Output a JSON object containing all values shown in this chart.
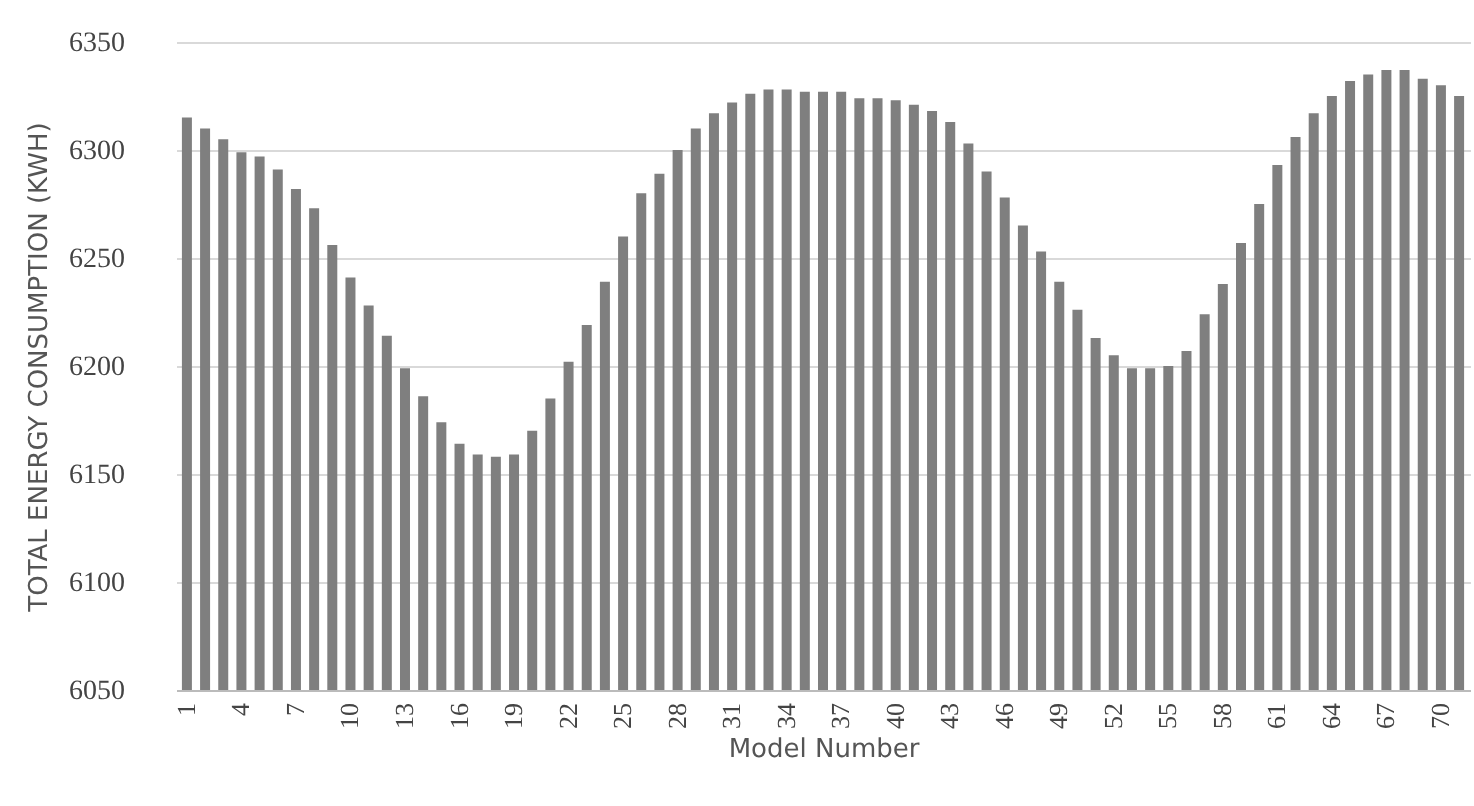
{
  "chart_data": {
    "type": "bar",
    "xlabel": "Model Number",
    "ylabel": "TOTAL ENERGY CONSUMPTION (KWH)",
    "categories": [
      "1",
      null,
      null,
      "4",
      null,
      null,
      "7",
      null,
      null,
      "10",
      null,
      null,
      "13",
      null,
      null,
      "16",
      null,
      null,
      "19",
      null,
      null,
      "22",
      null,
      null,
      "25",
      null,
      null,
      "28",
      null,
      null,
      "31",
      null,
      null,
      "34",
      null,
      null,
      "37",
      null,
      null,
      "40",
      null,
      null,
      "43",
      null,
      null,
      "46",
      null,
      null,
      "49",
      null,
      null,
      "52",
      null,
      null,
      "55",
      null,
      null,
      "58",
      null,
      null,
      "61",
      null,
      null,
      "64",
      null,
      null,
      "67",
      null,
      null,
      "70",
      null
    ],
    "series": [
      {
        "color": "#7f7f7f",
        "values": [
          6315,
          6310,
          6305,
          6299,
          6297,
          6291,
          6282,
          6273,
          6256,
          6241,
          6228,
          6214,
          6199,
          6186,
          6174,
          6164,
          6159,
          6158,
          6159,
          6170,
          6185,
          6202,
          6219,
          6239,
          6260,
          6280,
          6289,
          6300,
          6310,
          6317,
          6322,
          6326,
          6328,
          6328,
          6327,
          6327,
          6327,
          6324,
          6324,
          6323,
          6321,
          6318,
          6313,
          6303,
          6290,
          6278,
          6265,
          6253,
          6239,
          6226,
          6213,
          6205,
          6199,
          6199,
          6200,
          6207,
          6224,
          6238,
          6257,
          6275,
          6293,
          6306,
          6317,
          6325,
          6332,
          6335,
          6337,
          6337,
          6333,
          6330,
          6325
        ]
      }
    ],
    "ylim": [
      6050,
      6350
    ],
    "yticks": [
      6050,
      6100,
      6150,
      6200,
      6250,
      6300,
      6350
    ],
    "grid": "y"
  }
}
